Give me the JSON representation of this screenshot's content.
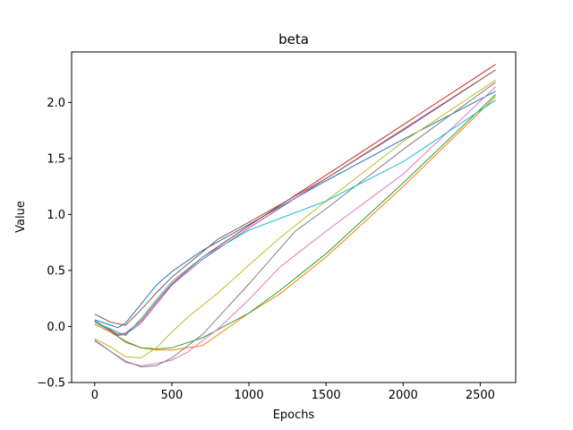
{
  "chart_data": {
    "type": "line",
    "title": "beta",
    "xlabel": "Epochs",
    "ylabel": "Value",
    "xlim": [
      -150,
      2730
    ],
    "ylim": [
      -0.5,
      2.45
    ],
    "xticks": [
      0,
      500,
      1000,
      1500,
      2000,
      2500
    ],
    "yticks": [
      -0.5,
      0.0,
      0.5,
      1.0,
      1.5,
      2.0
    ],
    "xtick_labels": [
      "0",
      "500",
      "1000",
      "1500",
      "2000",
      "2500"
    ],
    "ytick_labels": [
      "−0.5",
      "0.0",
      "0.5",
      "1.0",
      "1.5",
      "2.0"
    ],
    "grid": false,
    "legend": "none",
    "series": [
      {
        "color": "#1f77b4",
        "x": [
          0,
          150,
          200,
          300,
          400,
          500,
          700,
          1000,
          1500,
          2000,
          2600
        ],
        "y": [
          0.06,
          -0.01,
          0.03,
          0.2,
          0.37,
          0.49,
          0.68,
          0.91,
          1.3,
          1.67,
          2.1
        ]
      },
      {
        "color": "#ff7f0e",
        "x": [
          0,
          100,
          200,
          300,
          400,
          500,
          700,
          1000,
          1200,
          1500,
          2000,
          2600
        ],
        "y": [
          0.02,
          -0.05,
          -0.13,
          -0.19,
          -0.21,
          -0.21,
          -0.17,
          0.12,
          0.29,
          0.62,
          1.25,
          2.05
        ]
      },
      {
        "color": "#2ca02c",
        "x": [
          0,
          100,
          200,
          300,
          400,
          500,
          700,
          1000,
          1200,
          1500,
          2000,
          2600
        ],
        "y": [
          0.04,
          -0.04,
          -0.14,
          -0.19,
          -0.2,
          -0.19,
          -0.1,
          0.12,
          0.32,
          0.65,
          1.28,
          2.07
        ]
      },
      {
        "color": "#d62728",
        "x": [
          0,
          150,
          200,
          300,
          400,
          500,
          700,
          1000,
          1500,
          2000,
          2600
        ],
        "y": [
          0.05,
          -0.07,
          -0.06,
          0.05,
          0.22,
          0.38,
          0.62,
          0.9,
          1.35,
          1.8,
          2.34
        ]
      },
      {
        "color": "#9467bd",
        "x": [
          0,
          150,
          200,
          300,
          400,
          500,
          700,
          1000,
          1500,
          2000,
          2600
        ],
        "y": [
          0.05,
          -0.08,
          -0.07,
          0.03,
          0.2,
          0.37,
          0.6,
          0.88,
          1.32,
          1.75,
          2.29
        ]
      },
      {
        "color": "#8c564b",
        "x": [
          0,
          100,
          200,
          300,
          400,
          500,
          800,
          1000,
          1500,
          2000,
          2600
        ],
        "y": [
          0.11,
          0.04,
          0.01,
          0.15,
          0.3,
          0.44,
          0.78,
          0.93,
          1.32,
          1.76,
          2.29
        ]
      },
      {
        "color": "#e377c2",
        "x": [
          0,
          100,
          200,
          300,
          400,
          500,
          600,
          800,
          1000,
          1200,
          1500,
          2000,
          2600
        ],
        "y": [
          -0.13,
          -0.22,
          -0.32,
          -0.35,
          -0.33,
          -0.3,
          -0.23,
          -0.02,
          0.24,
          0.53,
          0.85,
          1.36,
          2.14
        ]
      },
      {
        "color": "#7f7f7f",
        "x": [
          0,
          100,
          200,
          300,
          400,
          500,
          700,
          1000,
          1300,
          1500,
          2000,
          2600
        ],
        "y": [
          -0.12,
          -0.22,
          -0.31,
          -0.36,
          -0.35,
          -0.28,
          -0.07,
          0.38,
          0.85,
          1.05,
          1.58,
          2.18
        ]
      },
      {
        "color": "#bcbd22",
        "x": [
          0,
          100,
          200,
          300,
          400,
          500,
          600,
          800,
          1000,
          1200,
          1500,
          2000,
          2600
        ],
        "y": [
          -0.11,
          -0.18,
          -0.27,
          -0.28,
          -0.19,
          -0.05,
          0.08,
          0.3,
          0.55,
          0.79,
          1.12,
          1.65,
          2.2
        ]
      },
      {
        "color": "#17becf",
        "x": [
          0,
          100,
          200,
          300,
          400,
          500,
          700,
          1000,
          1500,
          2000,
          2600
        ],
        "y": [
          0.04,
          -0.02,
          -0.08,
          0.07,
          0.24,
          0.4,
          0.62,
          0.86,
          1.12,
          1.47,
          2.02
        ]
      }
    ]
  }
}
